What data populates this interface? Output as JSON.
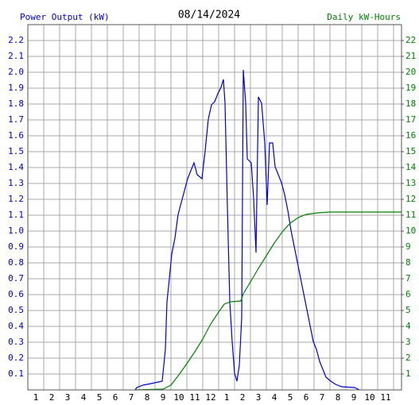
{
  "chart_data": {
    "type": "line",
    "title": "08/14/2024",
    "y_label": "Power Output (kW)",
    "y2_label": "Daily kW-Hours",
    "xlim": [
      0,
      23.5
    ],
    "xticks": [
      1,
      2,
      3,
      4,
      5,
      6,
      7,
      8,
      9,
      10,
      11,
      12,
      {
        "value": 13,
        "label": "1"
      },
      {
        "value": 14,
        "label": "2"
      },
      {
        "value": 15,
        "label": "3"
      },
      {
        "value": 16,
        "label": "4"
      },
      {
        "value": 17,
        "label": "5"
      },
      {
        "value": 18,
        "label": "6"
      },
      {
        "value": 19,
        "label": "7"
      },
      {
        "value": 20,
        "label": "8"
      },
      {
        "value": 21,
        "label": "9"
      },
      {
        "value": 22,
        "label": "10"
      },
      {
        "value": 23,
        "label": "11"
      }
    ],
    "ylim": [
      0,
      2.3
    ],
    "yticks": [
      0.1,
      0.2,
      0.3,
      0.4,
      0.5,
      0.6,
      0.7,
      0.8,
      0.9,
      {
        "value": 1,
        "label": "1.0"
      },
      1.1,
      1.2,
      1.3,
      1.4,
      1.5,
      1.6,
      1.7,
      1.8,
      1.9,
      {
        "value": 2,
        "label": "2.0"
      },
      2.1,
      2.2
    ],
    "y2lim": [
      0,
      23
    ],
    "y2ticks": [
      1,
      2,
      3,
      4,
      5,
      6,
      7,
      8,
      9,
      10,
      11,
      12,
      13,
      14,
      15,
      16,
      17,
      18,
      19,
      20,
      21,
      22
    ],
    "grid": true,
    "series": [
      {
        "name": "Power Output (kW)",
        "color": "#0000cc",
        "axis": "y",
        "x": [
          6.75,
          6.85,
          7.25,
          7.75,
          8.45,
          8.55,
          8.65,
          8.75,
          8.9,
          9.05,
          9.25,
          9.45,
          9.65,
          9.85,
          10.05,
          10.25,
          10.45,
          10.65,
          10.95,
          11.15,
          11.35,
          11.55,
          11.75,
          11.95,
          12.15,
          12.3,
          12.4,
          12.55,
          12.7,
          12.85,
          13.0,
          13.15,
          13.3,
          13.45,
          13.55,
          13.7,
          13.8,
          14.05,
          14.2,
          14.35,
          14.5,
          14.7,
          14.9,
          15.05,
          15.2,
          15.4,
          15.55,
          15.75,
          15.95,
          16.15,
          16.35,
          16.55,
          16.75,
          16.95,
          17.15,
          17.35,
          17.55,
          17.75,
          17.95,
          18.15,
          18.35,
          18.55,
          18.75,
          19.05,
          19.35,
          19.75,
          20.55,
          20.85
        ],
        "values": [
          0,
          0.015,
          0.03,
          0.04,
          0.055,
          0.155,
          0.255,
          0.555,
          0.7,
          0.855,
          0.955,
          1.105,
          1.18,
          1.255,
          1.33,
          1.38,
          1.43,
          1.355,
          1.33,
          1.505,
          1.705,
          1.795,
          1.815,
          1.865,
          1.905,
          1.955,
          1.805,
          1.155,
          0.555,
          0.305,
          0.105,
          0.055,
          0.155,
          0.455,
          2.015,
          1.805,
          1.455,
          1.43,
          1.205,
          0.865,
          1.845,
          1.805,
          1.555,
          1.165,
          1.555,
          1.555,
          1.405,
          1.355,
          1.305,
          1.23,
          1.13,
          1.005,
          0.905,
          0.805,
          0.705,
          0.605,
          0.505,
          0.405,
          0.305,
          0.255,
          0.18,
          0.13,
          0.08,
          0.055,
          0.035,
          0.02,
          0.015,
          0
        ]
      },
      {
        "name": "Daily kW-Hours",
        "color": "#008000",
        "axis": "y2",
        "x": [
          6.75,
          8.5,
          9.0,
          9.5,
          10.0,
          10.5,
          11.0,
          11.5,
          12.0,
          12.35,
          12.75,
          13.4,
          13.55,
          14.0,
          14.5,
          15.0,
          15.5,
          16.0,
          16.5,
          17.0,
          17.5,
          18.25,
          19.0,
          23.5
        ],
        "values": [
          0,
          0.05,
          0.3,
          0.95,
          1.65,
          2.4,
          3.2,
          4.15,
          4.9,
          5.4,
          5.55,
          5.6,
          6.05,
          6.8,
          7.65,
          8.45,
          9.25,
          9.95,
          10.5,
          10.85,
          11.05,
          11.15,
          11.2,
          11.2
        ]
      }
    ]
  }
}
